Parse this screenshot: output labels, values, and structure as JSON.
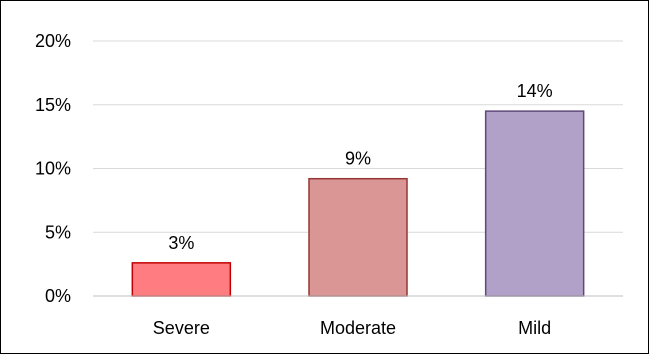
{
  "chart_data": {
    "type": "bar",
    "categories": [
      "Severe",
      "Moderate",
      "Mild"
    ],
    "values": [
      2.6,
      9.2,
      14.5
    ],
    "data_labels": [
      "3%",
      "9%",
      "14%"
    ],
    "title": "",
    "xlabel": "",
    "ylabel": "",
    "ylim": [
      0,
      20
    ],
    "yticks": [
      0,
      5,
      10,
      15,
      20
    ],
    "ytick_labels": [
      "0%",
      "5%",
      "10%",
      "15%",
      "20%"
    ],
    "grid": true,
    "legend": "none",
    "colors": {
      "fills": [
        "#ff7c80",
        "#da9694",
        "#b1a0c7"
      ],
      "borders": [
        "#c00000",
        "#953735",
        "#5f497a"
      ],
      "grid": "#d9d9d9",
      "axis": "#bfbfbf"
    }
  }
}
